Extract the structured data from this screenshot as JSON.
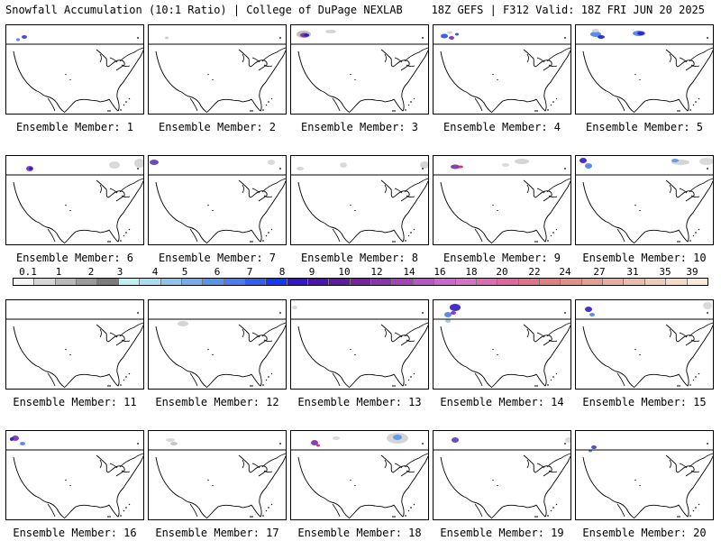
{
  "header": {
    "title_left": "Snowfall Accumulation (10:1 Ratio) | College of DuPage NEXLAB",
    "title_right": "18Z GEFS | F312 Valid: 18Z FRI JUN 20 2025"
  },
  "panels": [
    {
      "label": "Ensemble Member: 1"
    },
    {
      "label": "Ensemble Member: 2"
    },
    {
      "label": "Ensemble Member: 3"
    },
    {
      "label": "Ensemble Member: 4"
    },
    {
      "label": "Ensemble Member: 5"
    },
    {
      "label": "Ensemble Member: 6"
    },
    {
      "label": "Ensemble Member: 7"
    },
    {
      "label": "Ensemble Member: 8"
    },
    {
      "label": "Ensemble Member: 9"
    },
    {
      "label": "Ensemble Member: 10"
    },
    {
      "label": "Ensemble Member: 11"
    },
    {
      "label": "Ensemble Member: 12"
    },
    {
      "label": "Ensemble Member: 13"
    },
    {
      "label": "Ensemble Member: 14"
    },
    {
      "label": "Ensemble Member: 15"
    },
    {
      "label": "Ensemble Member: 16"
    },
    {
      "label": "Ensemble Member: 17"
    },
    {
      "label": "Ensemble Member: 18"
    },
    {
      "label": "Ensemble Member: 19"
    },
    {
      "label": "Ensemble Member: 20"
    }
  ],
  "colorbar": {
    "ticks": [
      "0.1",
      "1",
      "2",
      "3",
      "4",
      "5",
      "6",
      "7",
      "8",
      "9",
      "10",
      "12",
      "14",
      "16",
      "18",
      "20",
      "22",
      "24",
      "27",
      "31",
      "35",
      "39"
    ],
    "colors": [
      "#f4f4f4",
      "#d6d6d6",
      "#b8b8b8",
      "#9a9a9a",
      "#7c7c7c",
      "#bff0f0",
      "#a8dcf2",
      "#8ec4ec",
      "#74acea",
      "#5a94e8",
      "#4b7cf0",
      "#2f5ff2",
      "#1438f4",
      "#3318c8",
      "#4a14b0",
      "#5e1c9c",
      "#74249c",
      "#8a34ac",
      "#a044b8",
      "#b656c4",
      "#ca66cc",
      "#d870c8",
      "#dc6cb0",
      "#e0669c",
      "#e0728c",
      "#e0807e",
      "#e28f86",
      "#e49e92",
      "#e8ad9e",
      "#ecbcaa",
      "#f0cbb8",
      "#f4dac6",
      "#f8e8d6"
    ]
  },
  "colors": {
    "background": "#ffffff",
    "map_lines": "#000000"
  }
}
